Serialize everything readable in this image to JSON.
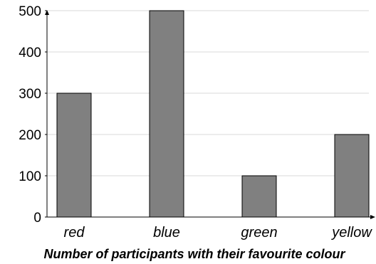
{
  "chart_data": {
    "type": "bar",
    "title": "Number of participants with their favourite colour",
    "xlabel": "",
    "ylabel": "",
    "categories": [
      "red",
      "blue",
      "green",
      "yellow"
    ],
    "values": [
      300,
      500,
      100,
      200
    ],
    "ylim": [
      0,
      500
    ],
    "yticks": [
      0,
      100,
      200,
      300,
      400,
      500
    ],
    "grid": true,
    "legend": "none",
    "bar_color": "#808080",
    "bar_stroke": "#000000",
    "grid_color": "#d9d9d9"
  }
}
